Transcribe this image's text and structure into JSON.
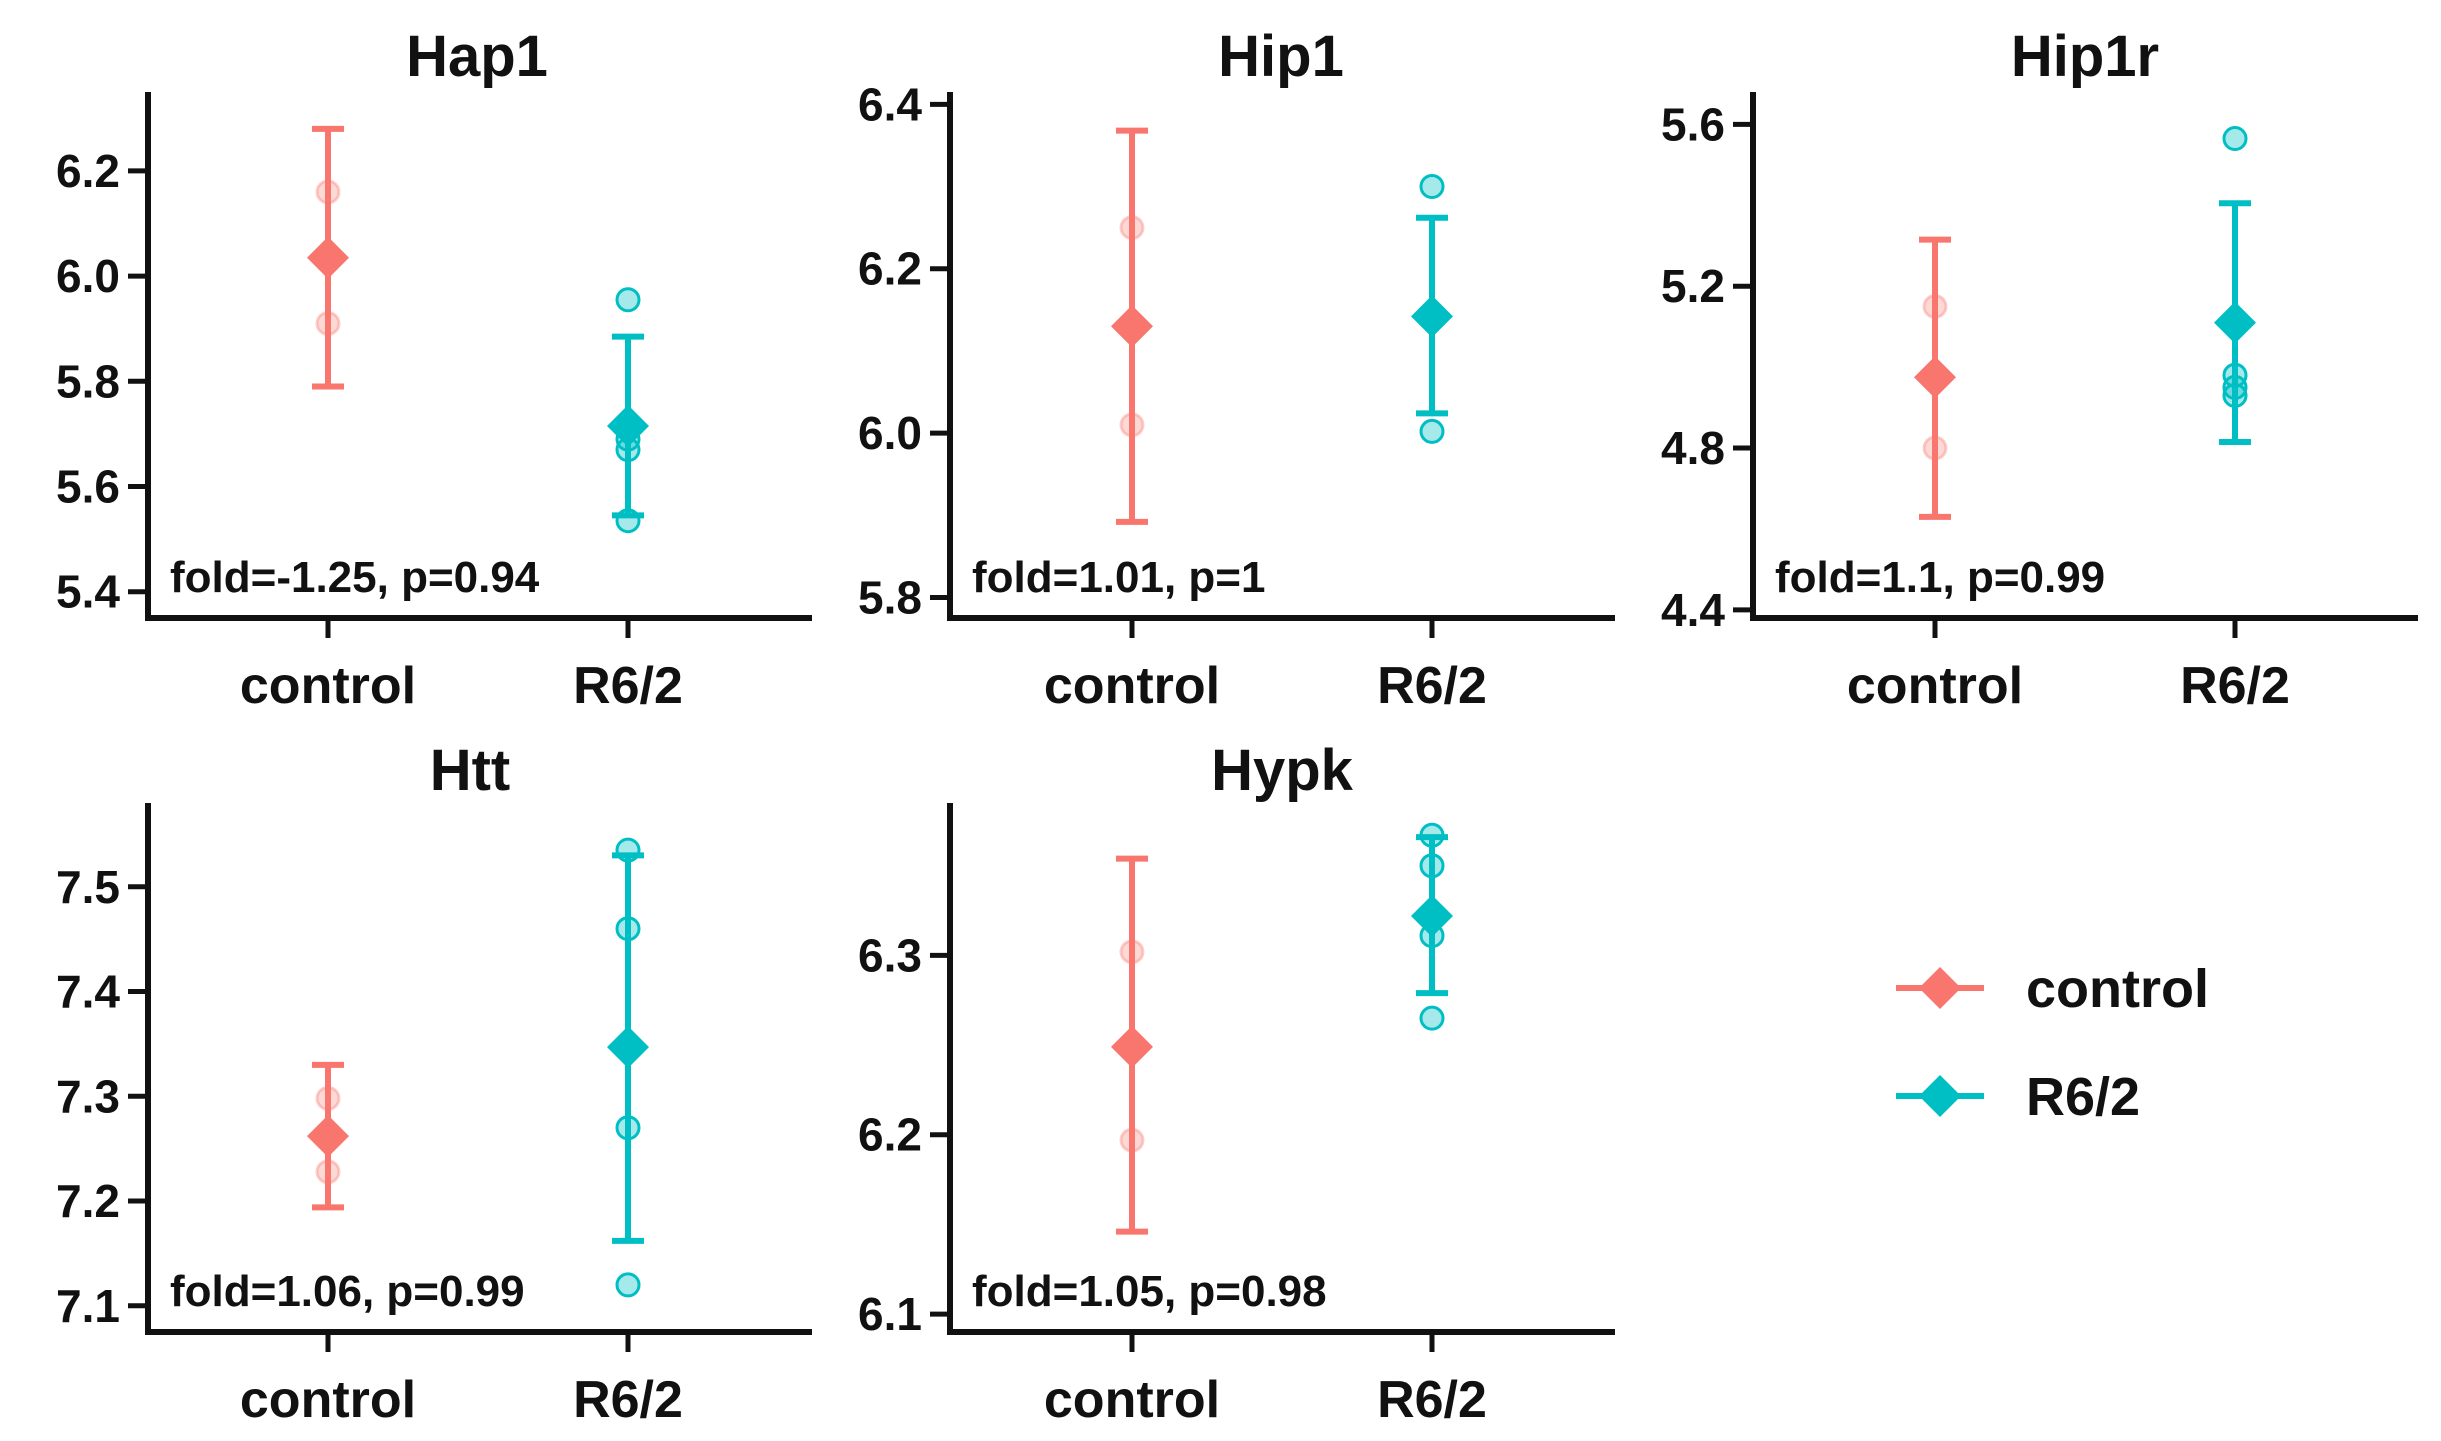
{
  "colors": {
    "control": "#F8766D",
    "R6/2": "#00BFC4"
  },
  "legend": {
    "position": "right",
    "items": [
      {
        "label": "control",
        "group": "control"
      },
      {
        "label": "R6/2",
        "group": "R6/2"
      }
    ]
  },
  "chart_data": [
    {
      "type": "scatter",
      "title": "Hap1",
      "categories": [
        "control",
        "R6/2"
      ],
      "yticks": [
        "5.4",
        "5.6",
        "5.8",
        "6.0",
        "6.2"
      ],
      "ylim": [
        5.35,
        6.35
      ],
      "annotation": "fold=-1.25, p=0.94",
      "series": [
        {
          "name": "control",
          "mean": 6.035,
          "error": [
            5.79,
            6.28
          ],
          "points": [
            6.16,
            5.91
          ]
        },
        {
          "name": "R6/2",
          "mean": 5.715,
          "error": [
            5.545,
            5.885
          ],
          "points": [
            5.955,
            5.69,
            5.67,
            5.535
          ]
        }
      ]
    },
    {
      "type": "scatter",
      "title": "Hip1",
      "categories": [
        "control",
        "R6/2"
      ],
      "yticks": [
        "5.8",
        "6.0",
        "6.2",
        "6.4"
      ],
      "ylim": [
        5.775,
        6.415
      ],
      "annotation": "fold=1.01, p=1",
      "series": [
        {
          "name": "control",
          "mean": 6.13,
          "error": [
            5.892,
            6.368
          ],
          "points": [
            6.25,
            6.01
          ]
        },
        {
          "name": "R6/2",
          "mean": 6.142,
          "error": [
            6.024,
            6.262
          ],
          "points": [
            6.3,
            6.002
          ]
        }
      ]
    },
    {
      "type": "scatter",
      "title": "Hip1r",
      "categories": [
        "control",
        "R6/2"
      ],
      "yticks": [
        "4.4",
        "4.8",
        "5.2",
        "5.6"
      ],
      "ylim": [
        4.38,
        5.68
      ],
      "annotation": "fold=1.1, p=0.99",
      "series": [
        {
          "name": "control",
          "mean": 4.975,
          "error": [
            4.63,
            5.315
          ],
          "points": [
            5.15,
            4.8
          ]
        },
        {
          "name": "R6/2",
          "mean": 5.11,
          "error": [
            4.815,
            5.405
          ],
          "points": [
            5.565,
            4.98,
            4.95,
            4.93
          ]
        }
      ]
    },
    {
      "type": "scatter",
      "title": "Htt",
      "categories": [
        "control",
        "R6/2"
      ],
      "yticks": [
        "7.1",
        "7.2",
        "7.3",
        "7.4",
        "7.5"
      ],
      "ylim": [
        7.075,
        7.58
      ],
      "annotation": "fold=1.06, p=0.99",
      "series": [
        {
          "name": "control",
          "mean": 7.262,
          "error": [
            7.194,
            7.33
          ],
          "points": [
            7.298,
            7.228
          ]
        },
        {
          "name": "R6/2",
          "mean": 7.347,
          "error": [
            7.162,
            7.53
          ],
          "points": [
            7.535,
            7.46,
            7.27,
            7.12
          ]
        }
      ]
    },
    {
      "type": "scatter",
      "title": "Hypk",
      "categories": [
        "control",
        "R6/2"
      ],
      "yticks": [
        "6.1",
        "6.2",
        "6.3"
      ],
      "ylim": [
        6.09,
        6.385
      ],
      "annotation": "fold=1.05, p=0.98",
      "series": [
        {
          "name": "control",
          "mean": 6.249,
          "error": [
            6.146,
            6.354
          ],
          "points": [
            6.302,
            6.197
          ]
        },
        {
          "name": "R6/2",
          "mean": 6.322,
          "error": [
            6.279,
            6.366
          ],
          "points": [
            6.367,
            6.35,
            6.311,
            6.265
          ]
        }
      ]
    }
  ]
}
